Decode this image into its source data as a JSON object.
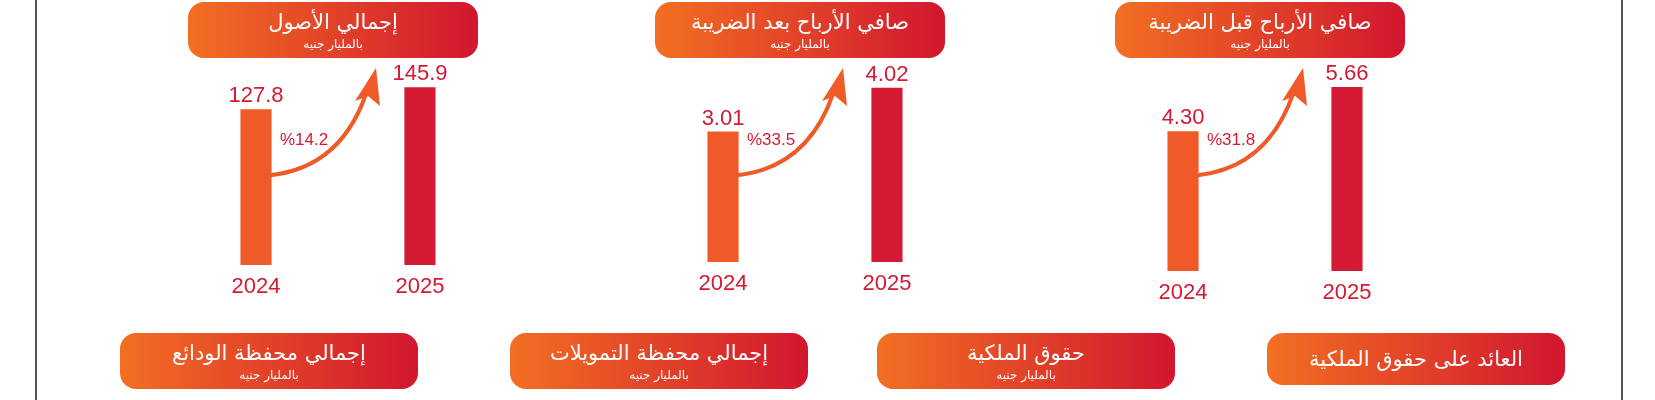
{
  "chart_data": [
    {
      "type": "bar",
      "title": "إجمالي الأصول",
      "subtitle": "بالمليار جنيه",
      "categories": [
        "2024",
        "2025"
      ],
      "values": [
        127.8,
        145.9
      ],
      "colors": [
        "#f05a28",
        "#d41a32"
      ],
      "data_labels": true,
      "annotations": [
        "%14.2"
      ]
    },
    {
      "type": "bar",
      "title": "صافي الأرباح بعد الضريبة",
      "subtitle": "بالمليار جنيه",
      "categories": [
        "2024",
        "2025"
      ],
      "values": [
        3.01,
        4.02
      ],
      "colors": [
        "#f05a28",
        "#d41a32"
      ],
      "data_labels": true,
      "value_labels": [
        "3.01",
        "4.02"
      ],
      "annotations": [
        "%33.5"
      ]
    },
    {
      "type": "bar",
      "title": "صافي الأرباح قبل الضريبة",
      "subtitle": "بالمليار جنيه",
      "categories": [
        "2024",
        "2025"
      ],
      "values": [
        4.3,
        5.66
      ],
      "colors": [
        "#f05a28",
        "#d41a32"
      ],
      "data_labels": true,
      "value_labels": [
        "4.30",
        "5.66"
      ],
      "annotations": [
        "%31.8"
      ]
    },
    {
      "type": "other",
      "title": "إجمالي محفظة الودائع",
      "subtitle": "بالمليار جنيه"
    },
    {
      "type": "other",
      "title": "إجمالي محفظة التمويلات",
      "subtitle": "بالمليار جنيه"
    },
    {
      "type": "other",
      "title": "حقوق الملكية",
      "subtitle": "بالمليار جنيه"
    },
    {
      "type": "other",
      "title": "العائد على حقوق الملكية"
    }
  ]
}
